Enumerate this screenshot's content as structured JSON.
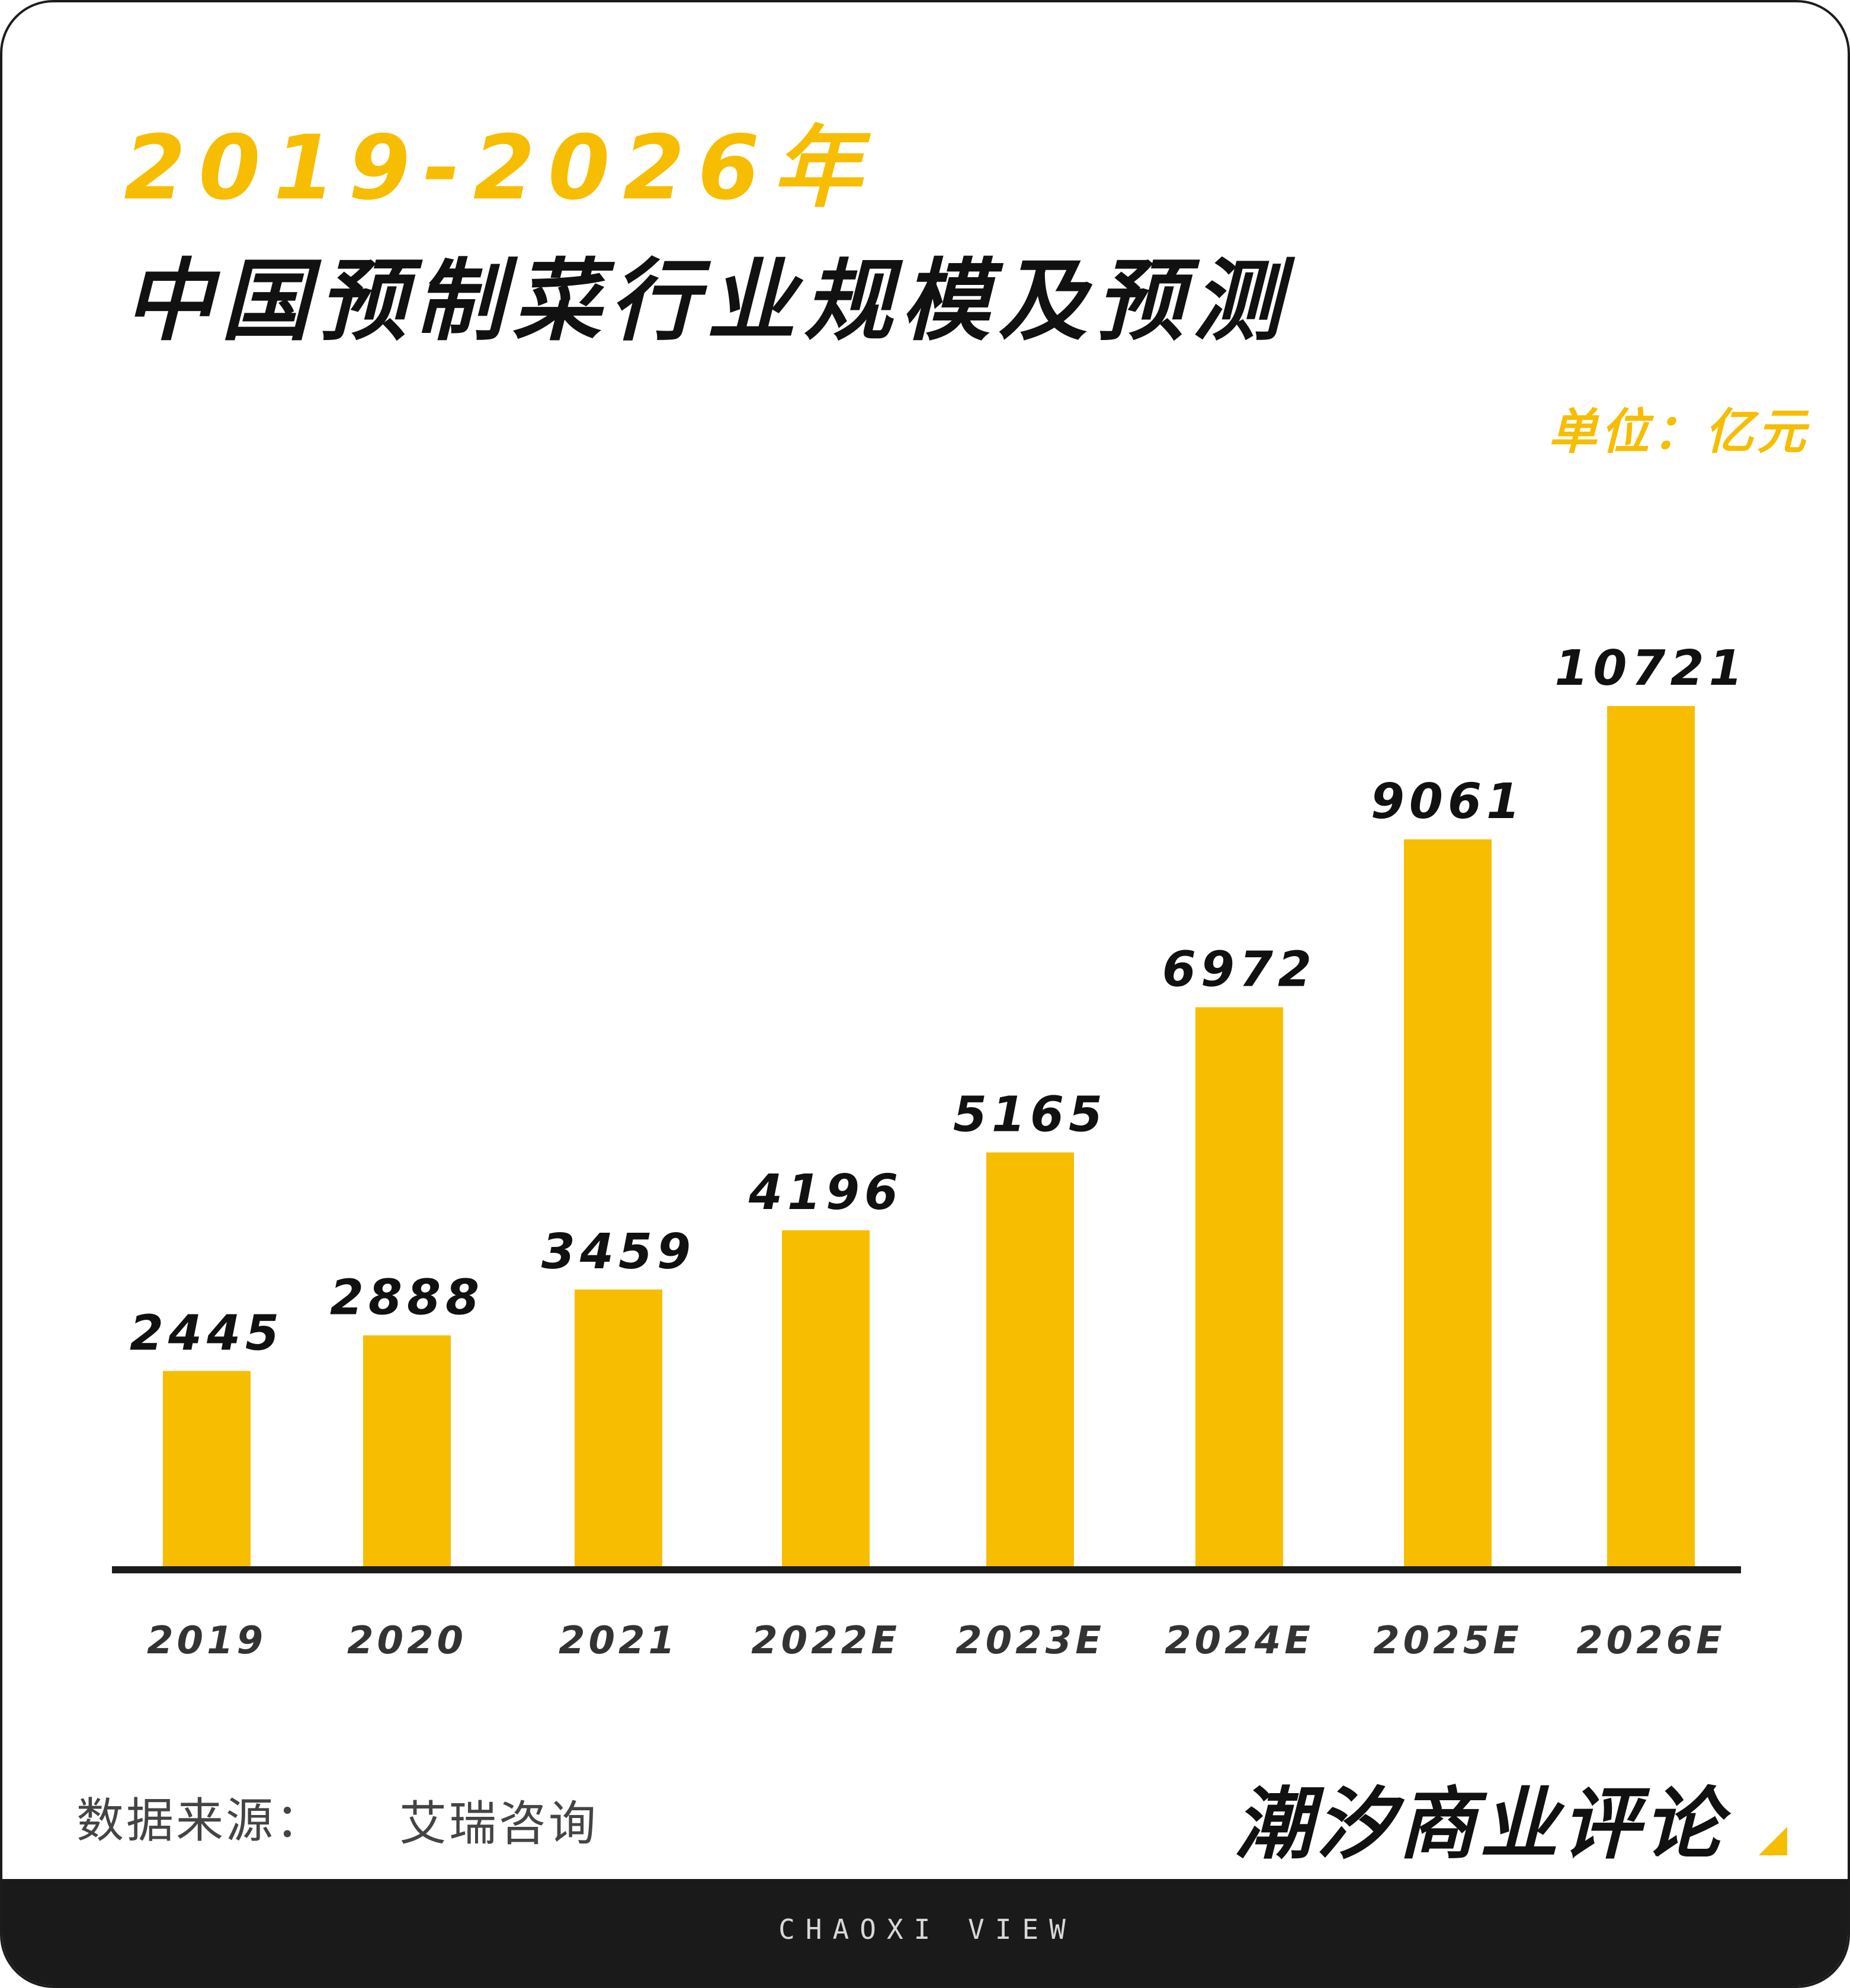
{
  "colors": {
    "accent": "#f7bd00",
    "text_dark": "#111111",
    "axis": "#1c1c1c",
    "footer_bg": "#1a1a1a"
  },
  "header": {
    "title_year": "2019-2026年",
    "title_main": "中国预制菜行业规模及预测",
    "unit": "单位：亿元"
  },
  "chart_data": {
    "type": "bar",
    "title": "2019-2026年 中国预制菜行业规模及预测",
    "unit": "单位：亿元",
    "categories": [
      "2019",
      "2020",
      "2021",
      "2022E",
      "2023E",
      "2024E",
      "2025E",
      "2026E"
    ],
    "values": [
      2445,
      2888,
      3459,
      4196,
      5165,
      6972,
      9061,
      10721
    ],
    "ylim": [
      0,
      11000
    ],
    "grid": false,
    "legend": "none",
    "bar_color": "#f7bd00"
  },
  "footer_info": {
    "source_label": "数据来源：",
    "source_value": "艾瑞咨询",
    "brand": "潮汐商业评论",
    "brand_en": "CHAOXI VIEW"
  }
}
